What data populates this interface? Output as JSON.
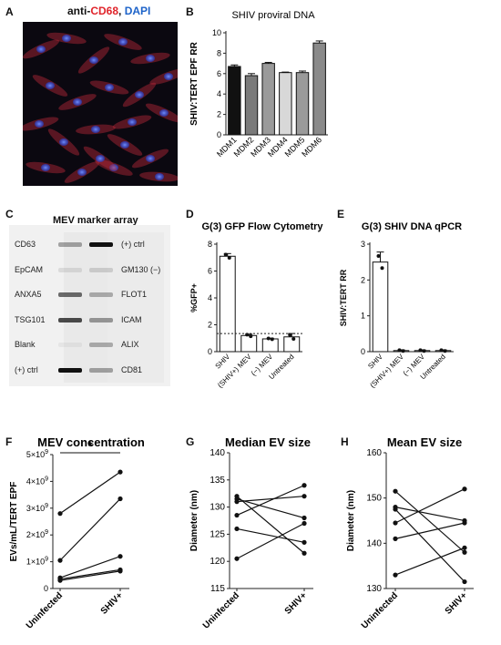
{
  "panel_letters": {
    "a": "A",
    "b": "B",
    "c": "C",
    "d": "D",
    "e": "E",
    "f": "F",
    "g": "G",
    "h": "H"
  },
  "panel_a": {
    "stain_prefix": "anti-",
    "stain_marker": "CD68",
    "stain_sep": ", ",
    "stain_dapi": "DAPI",
    "colors": {
      "marker": "#e0242b",
      "dapi": "#1d63c9"
    }
  },
  "panel_c": {
    "title": "MEV marker array",
    "left_labels": [
      "CD63",
      "EpCAM",
      "ANXA5",
      "TSG101",
      "Blank",
      "(+) ctrl"
    ],
    "right_labels": [
      "(+) ctrl",
      "GM130 (−)",
      "FLOT1",
      "ICAM",
      "ALIX",
      "CD81"
    ]
  },
  "chart_data": [
    {
      "id": "B",
      "type": "bar",
      "title": "SHIV proviral  DNA",
      "xlabel": "",
      "ylabel": "SHIV:TERT EPF RR",
      "categories": [
        "MDM1",
        "MDM2",
        "MDM3",
        "MDM4",
        "MDM5",
        "MDM6"
      ],
      "values": [
        6.7,
        5.8,
        7.0,
        6.1,
        6.1,
        9.0
      ],
      "errors": [
        0.15,
        0.2,
        0.1,
        0.05,
        0.15,
        0.2
      ],
      "bar_colors": [
        "#111111",
        "#7a7a7a",
        "#9a9a9a",
        "#d8d8d8",
        "#9a9a9a",
        "#8a8a8a"
      ],
      "ylim": [
        0,
        10
      ],
      "yticks": [
        "0",
        "2",
        "4",
        "6",
        "8",
        "10"
      ]
    },
    {
      "id": "D",
      "type": "bar",
      "title": "G(3) GFP Flow Cytometry",
      "xlabel": "",
      "ylabel": "%GFP+",
      "categories": [
        "SHIV",
        "(SHIV+) MEV",
        "(−) MEV",
        "Untreated"
      ],
      "values": [
        7.1,
        1.2,
        0.95,
        1.1
      ],
      "errors": [
        0.2,
        0.1,
        0.05,
        0.25
      ],
      "threshold": 1.35,
      "ylim": [
        0,
        8
      ],
      "yticks": [
        "0",
        "2",
        "4",
        "6",
        "8"
      ]
    },
    {
      "id": "E",
      "type": "bar",
      "title": "G(3) SHIV DNA qPCR",
      "xlabel": "",
      "ylabel": "SHIV:TERT RR",
      "categories": [
        "SHIV",
        "(SHIV+) MEV",
        "(−) MEV",
        "Untreated"
      ],
      "values": [
        2.5,
        0.03,
        0.03,
        0.03
      ],
      "errors": [
        0.28,
        0.02,
        0.02,
        0.02
      ],
      "ylim": [
        0,
        3
      ],
      "yticks": [
        "0",
        "1",
        "2",
        "3"
      ]
    },
    {
      "id": "F",
      "type": "line",
      "title": "MEV concentration",
      "xlabel": "",
      "ylabel": "EVs/mL/TERT EPF",
      "categories": [
        "Uninfected",
        "SHIV+"
      ],
      "pairs": [
        [
          2800000000.0,
          4350000000.0
        ],
        [
          1050000000.0,
          3350000000.0
        ],
        [
          400000000.0,
          1200000000.0
        ],
        [
          350000000.0,
          700000000.0
        ],
        [
          300000000.0,
          650000000.0
        ]
      ],
      "ylim": [
        0,
        5000000000.0
      ],
      "yticks": [
        {
          "mant": "0",
          "exp": ""
        },
        {
          "mant": "1×10",
          "exp": "9"
        },
        {
          "mant": "2×10",
          "exp": "9"
        },
        {
          "mant": "3×10",
          "exp": "9"
        },
        {
          "mant": "4×10",
          "exp": "9"
        },
        {
          "mant": "5×10",
          "exp": "9"
        }
      ],
      "significance": "*"
    },
    {
      "id": "G",
      "type": "line",
      "title": "Median EV size",
      "xlabel": "",
      "ylabel": "Diameter (nm)",
      "categories": [
        "Uninfected",
        "SHIV+"
      ],
      "pairs": [
        [
          132,
          121.5
        ],
        [
          131.5,
          128
        ],
        [
          131,
          132
        ],
        [
          128.5,
          134
        ],
        [
          126,
          123.5
        ],
        [
          120.5,
          127
        ]
      ],
      "ylim": [
        115,
        140
      ],
      "yticks": [
        "115",
        "120",
        "125",
        "130",
        "135",
        "140"
      ]
    },
    {
      "id": "H",
      "type": "line",
      "title": "Mean  EV size",
      "xlabel": "",
      "ylabel": "Diameter (nm)",
      "categories": [
        "Uninfected",
        "SHIV+"
      ],
      "pairs": [
        [
          151.5,
          138
        ],
        [
          148,
          145
        ],
        [
          147.5,
          131.5
        ],
        [
          144.5,
          152
        ],
        [
          141,
          144.5
        ],
        [
          133,
          139
        ]
      ],
      "ylim": [
        130,
        160
      ],
      "yticks": [
        "130",
        "140",
        "150",
        "160"
      ]
    }
  ]
}
